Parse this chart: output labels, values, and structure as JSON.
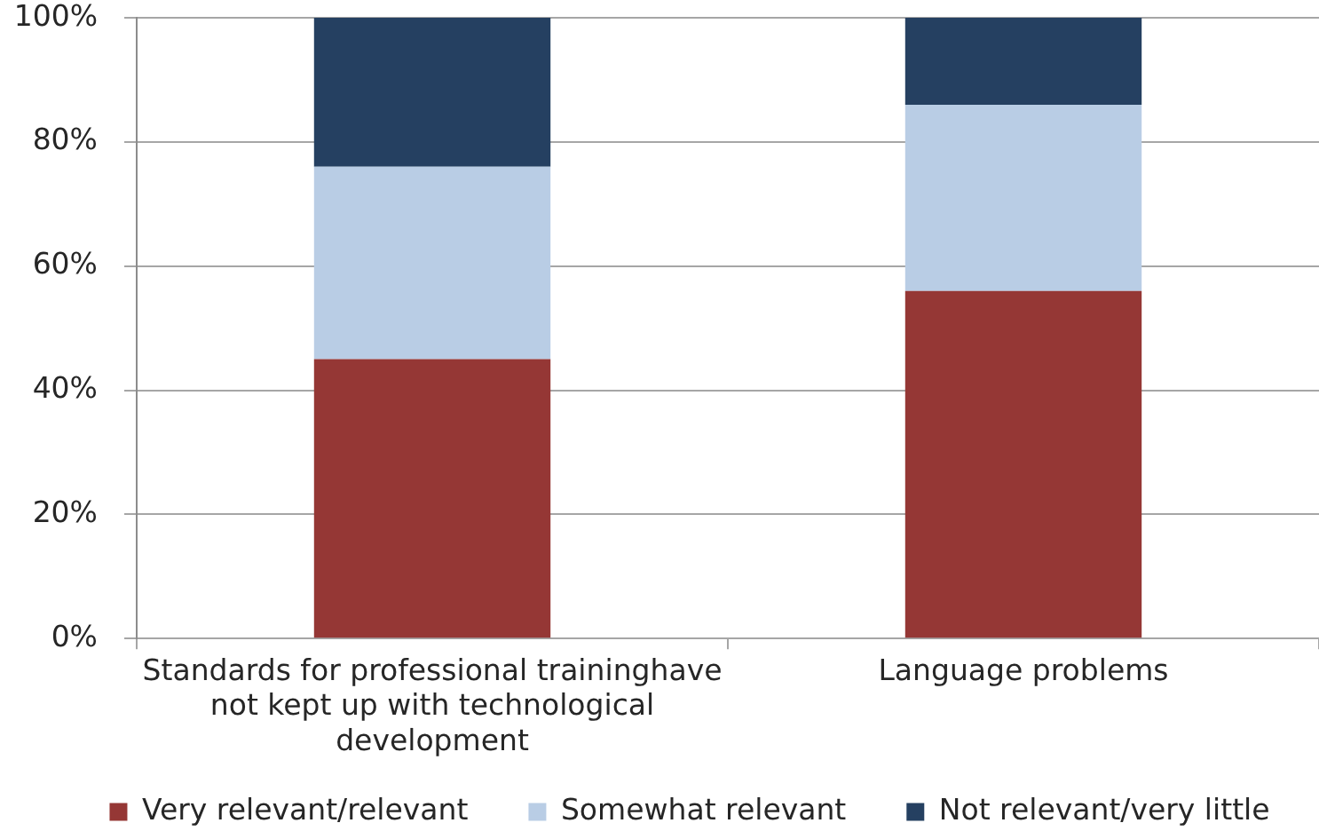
{
  "chart_data": {
    "type": "bar",
    "stacked": true,
    "categories": [
      "Standards for professional traininghave not kept up with technological development",
      "Language problems"
    ],
    "series": [
      {
        "name": "Very relevant/relevant",
        "color": "#953735",
        "values": [
          45,
          56
        ]
      },
      {
        "name": "Somewhat relevant",
        "color": "#b9cde5",
        "values": [
          31,
          30
        ]
      },
      {
        "name": "Not relevant/very little",
        "color": "#254061",
        "values": [
          24,
          14
        ]
      }
    ],
    "ylim": [
      0,
      100
    ],
    "yticks": [
      {
        "value": 0,
        "label": "0%"
      },
      {
        "value": 20,
        "label": "20%"
      },
      {
        "value": 40,
        "label": "40%"
      },
      {
        "value": 60,
        "label": "60%"
      },
      {
        "value": 80,
        "label": "80%"
      },
      {
        "value": 100,
        "label": "100%"
      }
    ],
    "grid": "y",
    "legend": "bottom"
  }
}
